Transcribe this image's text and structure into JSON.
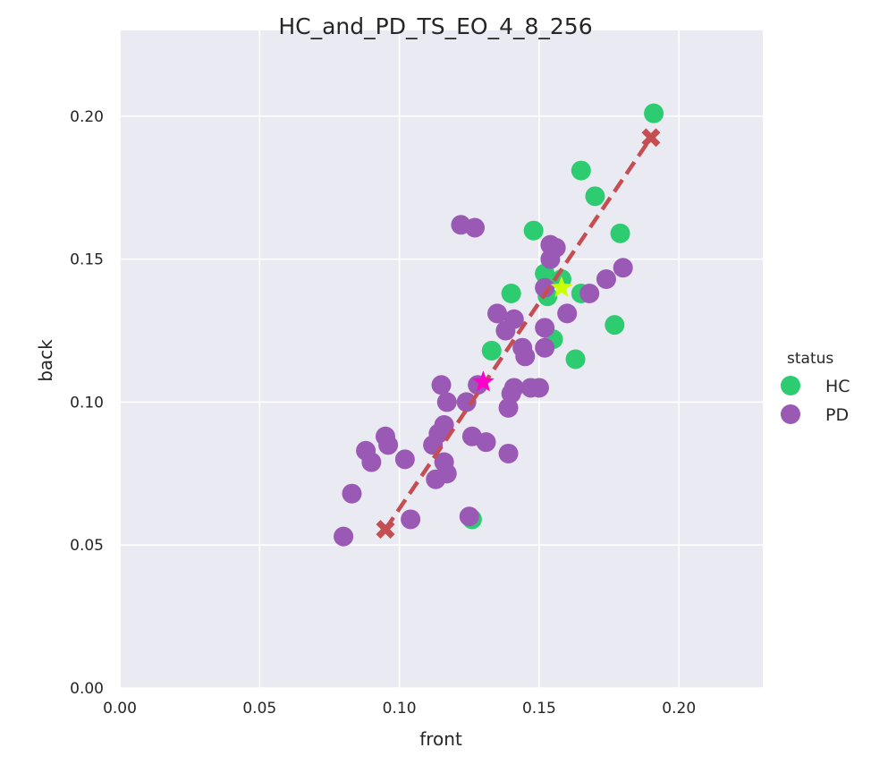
{
  "chart_data": {
    "type": "scatter",
    "title": "HC_and_PD_TS_EO_4_8_256",
    "xlabel": "front",
    "ylabel": "back",
    "xlim": [
      0,
      0.23
    ],
    "ylim": [
      0,
      0.23
    ],
    "xticks": [
      "0.00",
      "0.05",
      "0.10",
      "0.15",
      "0.20"
    ],
    "yticks": [
      "0.00",
      "0.05",
      "0.10",
      "0.15",
      "0.20"
    ],
    "grid": true,
    "background_color": "#eaeaf2",
    "legend": {
      "title": "status",
      "placement": "right"
    },
    "series": [
      {
        "name": "HC",
        "color": "#2ecc71",
        "points": [
          [
            0.191,
            0.201
          ],
          [
            0.165,
            0.181
          ],
          [
            0.17,
            0.172
          ],
          [
            0.148,
            0.16
          ],
          [
            0.179,
            0.159
          ],
          [
            0.152,
            0.145
          ],
          [
            0.158,
            0.143
          ],
          [
            0.153,
            0.137
          ],
          [
            0.165,
            0.138
          ],
          [
            0.14,
            0.138
          ],
          [
            0.177,
            0.127
          ],
          [
            0.155,
            0.122
          ],
          [
            0.133,
            0.118
          ],
          [
            0.163,
            0.115
          ],
          [
            0.126,
            0.059
          ]
        ]
      },
      {
        "name": "PD",
        "color": "#9b59b6",
        "points": [
          [
            0.122,
            0.162
          ],
          [
            0.127,
            0.161
          ],
          [
            0.154,
            0.155
          ],
          [
            0.156,
            0.154
          ],
          [
            0.154,
            0.15
          ],
          [
            0.18,
            0.147
          ],
          [
            0.174,
            0.143
          ],
          [
            0.152,
            0.14
          ],
          [
            0.168,
            0.138
          ],
          [
            0.16,
            0.131
          ],
          [
            0.135,
            0.131
          ],
          [
            0.141,
            0.129
          ],
          [
            0.138,
            0.125
          ],
          [
            0.152,
            0.126
          ],
          [
            0.144,
            0.119
          ],
          [
            0.152,
            0.119
          ],
          [
            0.145,
            0.116
          ],
          [
            0.115,
            0.106
          ],
          [
            0.128,
            0.106
          ],
          [
            0.141,
            0.105
          ],
          [
            0.147,
            0.105
          ],
          [
            0.15,
            0.105
          ],
          [
            0.14,
            0.103
          ],
          [
            0.117,
            0.1
          ],
          [
            0.124,
            0.1
          ],
          [
            0.139,
            0.098
          ],
          [
            0.116,
            0.092
          ],
          [
            0.114,
            0.089
          ],
          [
            0.095,
            0.088
          ],
          [
            0.126,
            0.088
          ],
          [
            0.131,
            0.086
          ],
          [
            0.096,
            0.085
          ],
          [
            0.112,
            0.085
          ],
          [
            0.088,
            0.083
          ],
          [
            0.139,
            0.082
          ],
          [
            0.102,
            0.08
          ],
          [
            0.09,
            0.079
          ],
          [
            0.116,
            0.079
          ],
          [
            0.117,
            0.075
          ],
          [
            0.113,
            0.073
          ],
          [
            0.083,
            0.068
          ],
          [
            0.125,
            0.06
          ],
          [
            0.104,
            0.059
          ],
          [
            0.08,
            0.053
          ]
        ]
      }
    ],
    "regression_line": {
      "color": "#c44e52",
      "style": "dashed",
      "from": [
        0.095,
        0.0555
      ],
      "to": [
        0.19,
        0.1925
      ]
    },
    "centroid_markers": [
      {
        "series": "HC",
        "marker": "star",
        "color": "#ccff00",
        "x": 0.158,
        "y": 0.14
      },
      {
        "series": "PD",
        "marker": "star",
        "color": "#ff00cc",
        "x": 0.13,
        "y": 0.107
      }
    ]
  }
}
